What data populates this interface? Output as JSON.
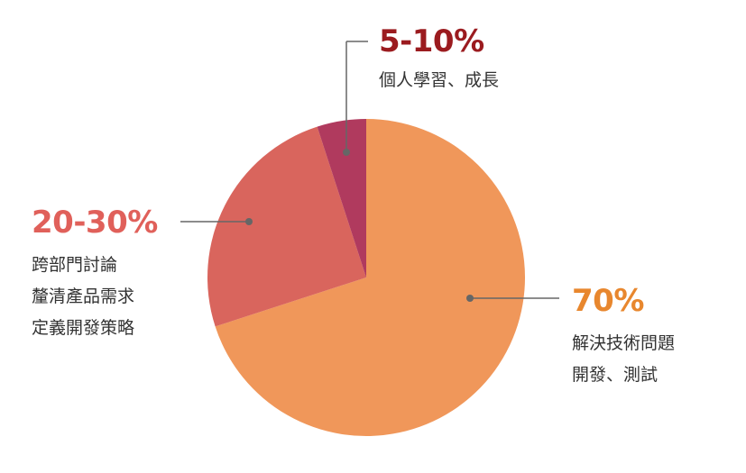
{
  "chart_data": {
    "type": "pie",
    "slices": [
      {
        "label": "70%",
        "description": [
          "解決技術問題",
          "開發、測試"
        ],
        "value": 70,
        "color": "#f0975a",
        "label_color": "#e8872e"
      },
      {
        "label": "20-30%",
        "description": [
          "跨部門討論",
          "釐清產品需求",
          "定義開發策略"
        ],
        "value": 25,
        "color": "#d9655d",
        "label_color": "#e0605a"
      },
      {
        "label": "5-10%",
        "description": [
          "個人學習、成長"
        ],
        "value": 5,
        "color": "#b03a5e",
        "label_color": "#9b1b1f"
      }
    ],
    "start_angle": "top",
    "direction": "clockwise",
    "connector_color": "#666666"
  }
}
